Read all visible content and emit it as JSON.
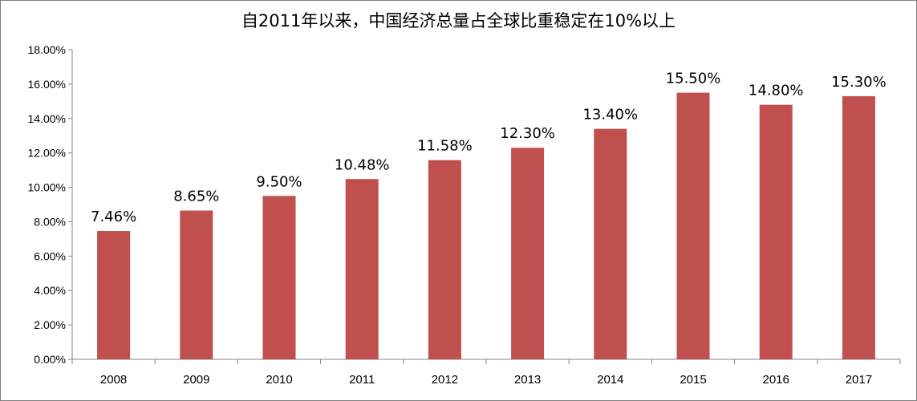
{
  "chart_data": {
    "type": "bar",
    "title": "自2011年以来，中国经济总量占全球比重稳定在10%以上",
    "xlabel": "",
    "ylabel": "",
    "categories": [
      "2008",
      "2009",
      "2010",
      "2011",
      "2012",
      "2013",
      "2014",
      "2015",
      "2016",
      "2017"
    ],
    "values": [
      7.46,
      8.65,
      9.5,
      10.48,
      11.58,
      12.3,
      13.4,
      15.5,
      14.8,
      15.3
    ],
    "data_labels": [
      "7.46%",
      "8.65%",
      "9.50%",
      "10.48%",
      "11.58%",
      "12.30%",
      "13.40%",
      "15.50%",
      "14.80%",
      "15.30%"
    ],
    "ylim": [
      0,
      18
    ],
    "yticks": [
      0,
      2,
      4,
      6,
      8,
      10,
      12,
      14,
      16,
      18
    ],
    "ytick_labels": [
      "0.00%",
      "2.00%",
      "4.00%",
      "6.00%",
      "8.00%",
      "10.00%",
      "12.00%",
      "14.00%",
      "16.00%",
      "18.00%"
    ],
    "grid": false,
    "legend": "none",
    "colors": {
      "bar": "#c0504d",
      "axis": "#868686"
    }
  }
}
